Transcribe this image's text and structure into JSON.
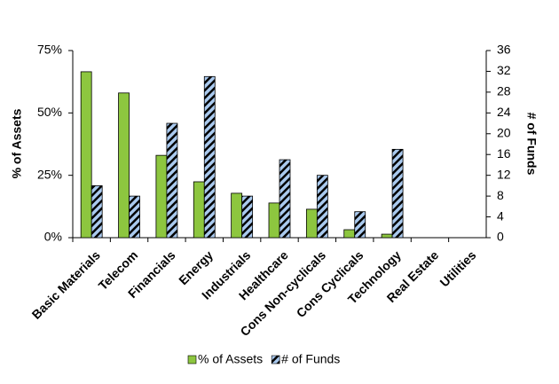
{
  "chart_data": {
    "type": "bar",
    "categories": [
      "Basic Materials",
      "Telecom",
      "Financials",
      "Energy",
      "Industrials",
      "Healthcare",
      "Cons Non-cyclicals",
      "Cons Cyclicals",
      "Technology",
      "Real Estate",
      "Utilities"
    ],
    "series": [
      {
        "name": "% of Assets",
        "color": "#8dc63f",
        "values": [
          66.5,
          58,
          33,
          22.4,
          17.8,
          13.9,
          11.4,
          3.2,
          1.4,
          0,
          0
        ]
      },
      {
        "name": "# of Funds",
        "color": "#a9c9ee",
        "axis": "y2",
        "values": [
          10,
          8,
          22,
          31,
          8,
          15,
          12,
          5,
          17,
          0,
          0
        ]
      }
    ],
    "ylabel": "% of Assets",
    "y2label": "# of Funds",
    "ylim": [
      0,
      75
    ],
    "yticks": [
      {
        "value": 0,
        "label": "0%"
      },
      {
        "value": 25,
        "label": "25%"
      },
      {
        "value": 50,
        "label": "50%"
      },
      {
        "value": 75,
        "label": "75%"
      }
    ],
    "y2lim": [
      0,
      36
    ],
    "y2ticks": [
      0,
      4,
      8,
      12,
      16,
      20,
      24,
      28,
      32,
      36
    ],
    "grid": false,
    "legend": "bottom"
  }
}
